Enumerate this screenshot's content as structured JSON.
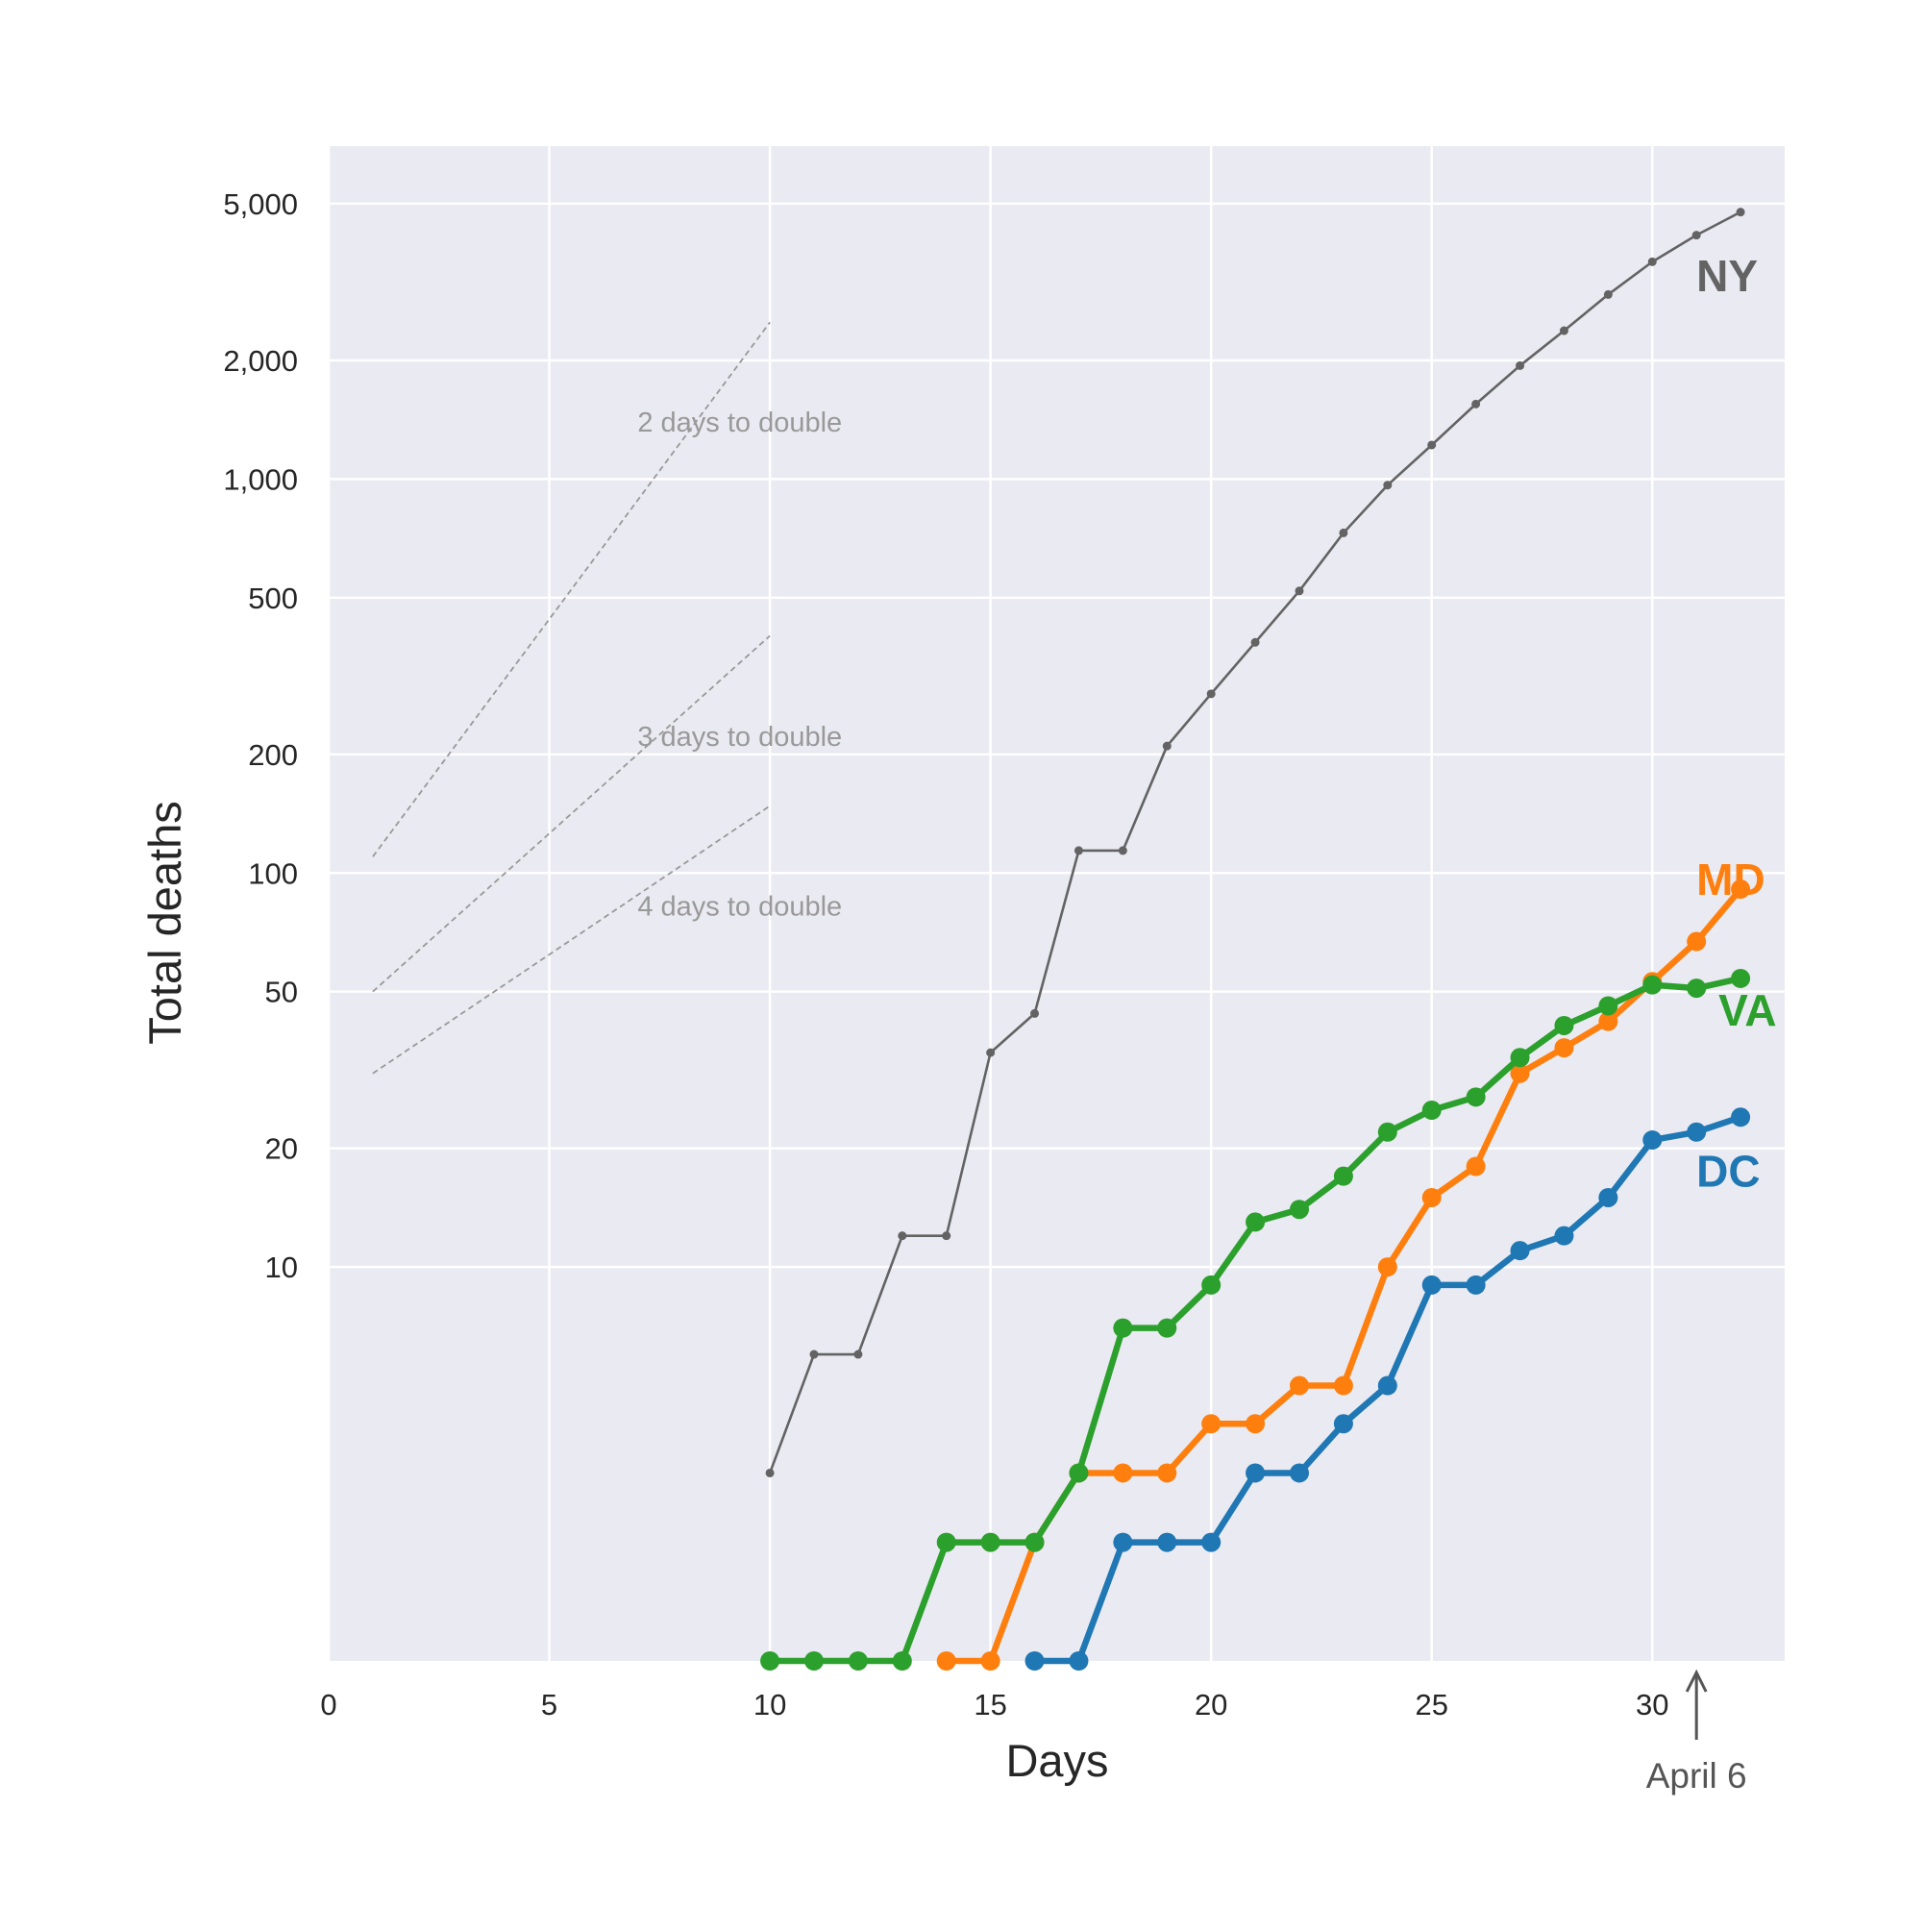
{
  "chart_data": {
    "type": "line",
    "xlabel": "Days",
    "ylabel": "Total deaths",
    "xlim": [
      0,
      33
    ],
    "ylim": [
      1,
      7000
    ],
    "yscale": "log",
    "grid": true,
    "background": "#EAEAF2",
    "xticks": [
      0,
      5,
      10,
      15,
      20,
      25,
      30
    ],
    "xtick_labels": [
      "0",
      "5",
      "10",
      "15",
      "20",
      "25",
      "30"
    ],
    "yticks": [
      10,
      20,
      50,
      100,
      200,
      500,
      1000,
      2000,
      5000
    ],
    "ytick_labels": [
      "10",
      "20",
      "50",
      "100",
      "200",
      "500",
      "1,000",
      "2,000",
      "5,000"
    ],
    "series": [
      {
        "name": "NY",
        "color": "#636363",
        "x": [
          10,
          11,
          12,
          13,
          14,
          15,
          16,
          17,
          18,
          19,
          20,
          21,
          22,
          23,
          24,
          25,
          26,
          27,
          28,
          29,
          30,
          31,
          32
        ],
        "values": [
          3,
          6,
          6,
          12,
          12,
          35,
          44,
          114,
          114,
          210,
          285,
          385,
          520,
          730,
          965,
          1220,
          1550,
          1940,
          2380,
          2940,
          3560,
          4160,
          4760
        ]
      },
      {
        "name": "MD",
        "color": "#FF7F0E",
        "x": [
          14,
          15,
          16,
          17,
          18,
          19,
          20,
          21,
          22,
          23,
          24,
          25,
          26,
          27,
          28,
          29,
          30,
          31,
          32
        ],
        "values": [
          1,
          1,
          2,
          3,
          3,
          3,
          4,
          4,
          5,
          5,
          10,
          15,
          18,
          31,
          36,
          42,
          53,
          67,
          91
        ]
      },
      {
        "name": "VA",
        "color": "#2CA02C",
        "x": [
          10,
          11,
          12,
          13,
          14,
          15,
          16,
          17,
          18,
          19,
          20,
          21,
          22,
          23,
          24,
          25,
          26,
          27,
          28,
          29,
          30,
          31,
          32
        ],
        "values": [
          1,
          1,
          1,
          1,
          2,
          2,
          2,
          3,
          7,
          7,
          9,
          13,
          14,
          17,
          22,
          25,
          27,
          34,
          41,
          46,
          52,
          51,
          54
        ]
      },
      {
        "name": "DC",
        "color": "#1F77B4",
        "x": [
          16,
          17,
          18,
          19,
          20,
          21,
          22,
          23,
          24,
          25,
          26,
          27,
          28,
          29,
          30,
          31,
          32
        ],
        "values": [
          1,
          1,
          2,
          2,
          2,
          3,
          3,
          4,
          5,
          9,
          9,
          11,
          12,
          15,
          21,
          22,
          24
        ]
      }
    ],
    "guides": [
      {
        "label": "2 days to double",
        "x": [
          1,
          10
        ],
        "values": [
          110,
          2500
        ],
        "label_x": 7,
        "label_y": 1320
      },
      {
        "label": "3 days to double",
        "x": [
          1,
          10
        ],
        "values": [
          50,
          400
        ],
        "label_x": 7,
        "label_y": 210
      },
      {
        "label": "4 days to double",
        "x": [
          1,
          10
        ],
        "values": [
          31,
          148
        ],
        "label_x": 7,
        "label_y": 78
      }
    ],
    "series_labels": [
      {
        "text": "NY",
        "x": 31,
        "y": 3000,
        "color": "#636363"
      },
      {
        "text": "MD",
        "x": 31,
        "y": 88,
        "color": "#FF7F0E"
      },
      {
        "text": "VA",
        "x": 31.5,
        "y": 41,
        "color": "#2CA02C"
      },
      {
        "text": "DC",
        "x": 31,
        "y": 16,
        "color": "#1F77B4"
      }
    ],
    "annotation": {
      "text": "April 6",
      "x": 31
    }
  }
}
